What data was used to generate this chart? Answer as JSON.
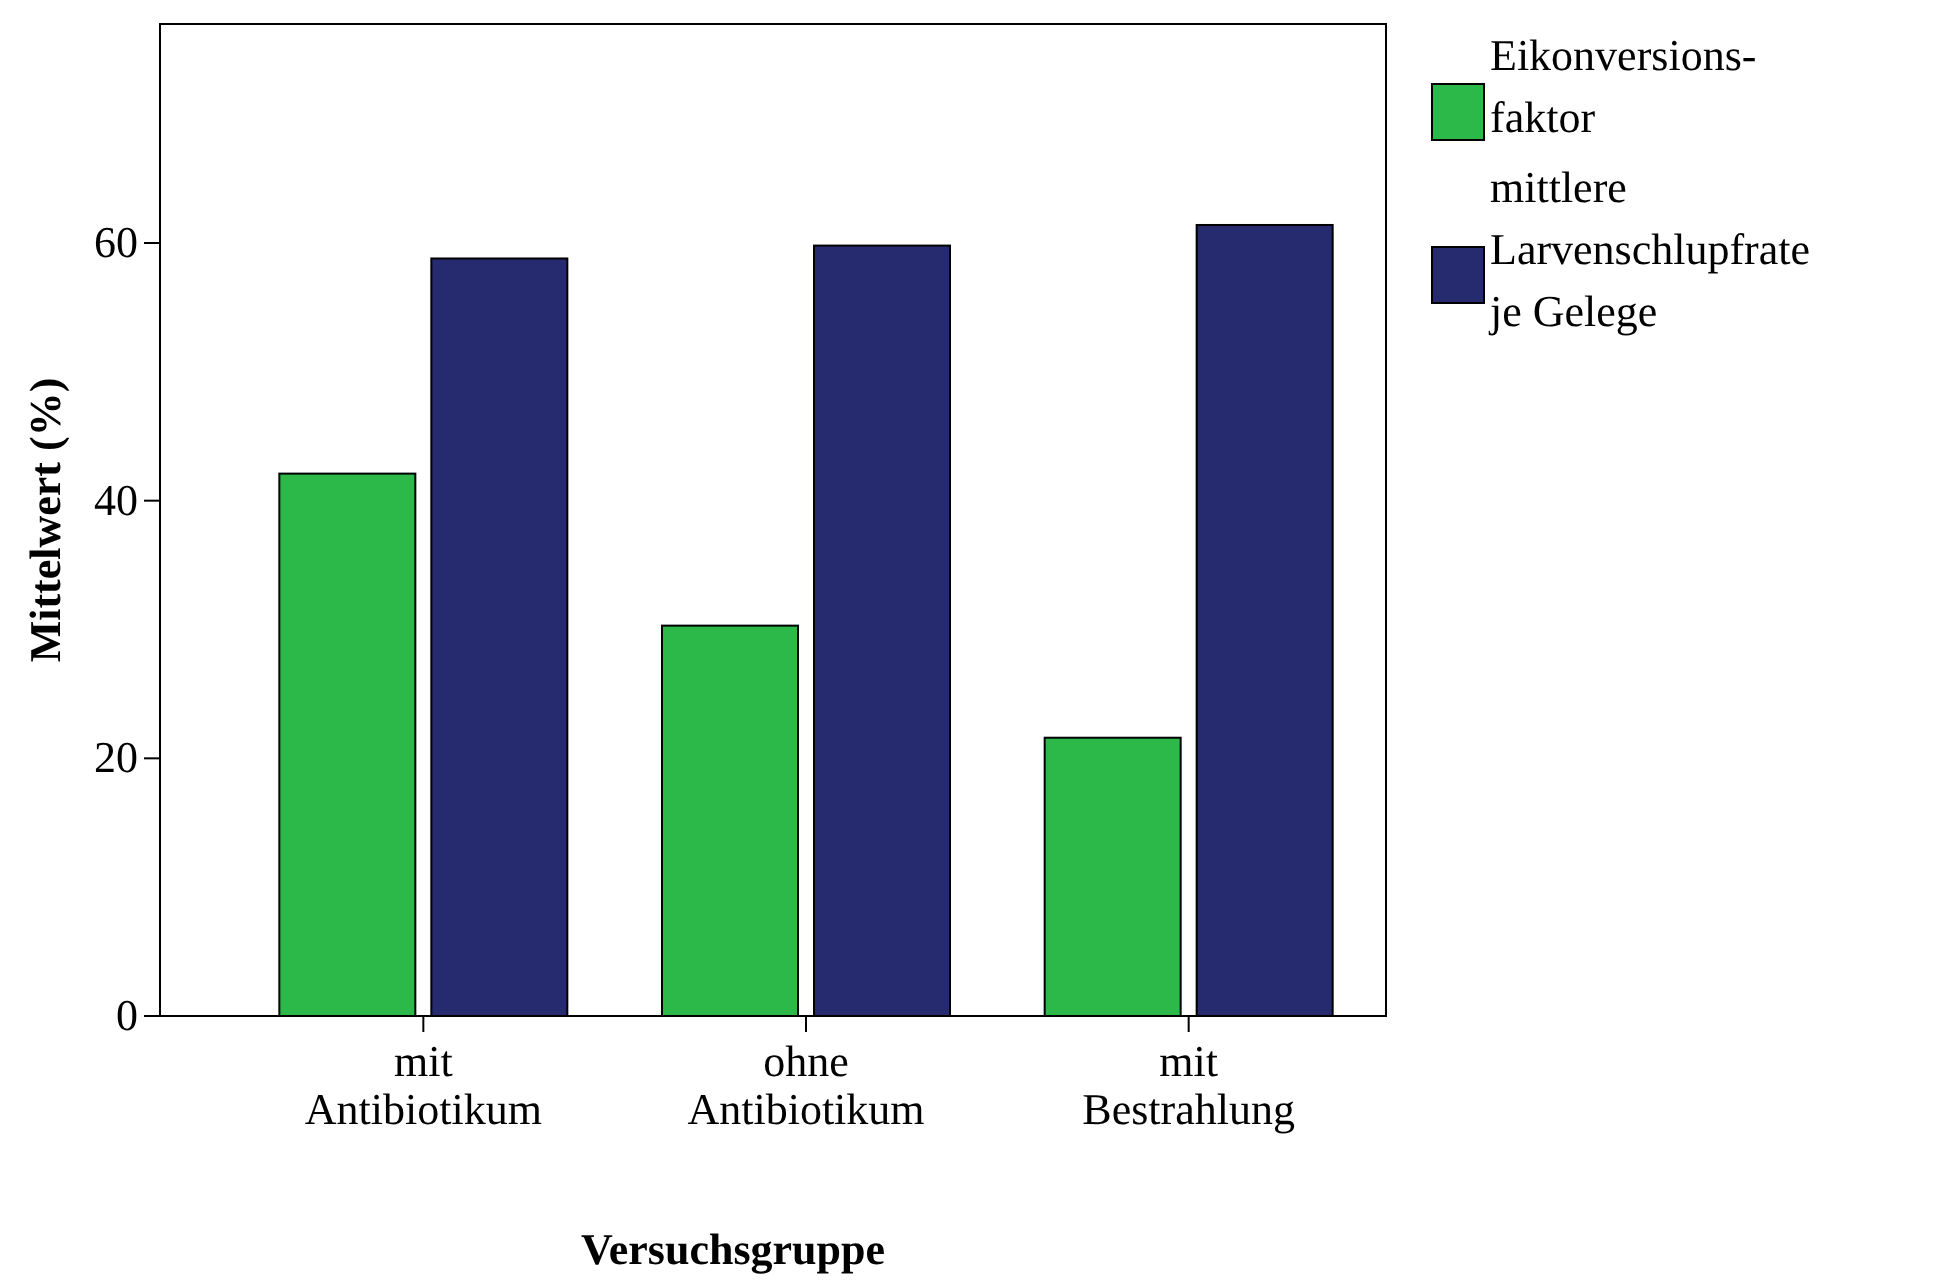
{
  "chart_data": {
    "type": "bar",
    "xlabel": "Versuchsgruppe",
    "ylabel": "Mittelwert (%)",
    "categories": [
      "mit Antibiotikum",
      "ohne Antibiotikum",
      "mit Bestrahlung"
    ],
    "series": [
      {
        "name": "Eikonversions-faktor",
        "color": "#2db84a",
        "values": [
          42.1,
          30.3,
          21.6
        ]
      },
      {
        "name": "mittlere Larvenschlupfrate je Gelege",
        "color": "#262a6e",
        "values": [
          58.8,
          59.8,
          61.4
        ]
      }
    ],
    "ylim": [
      0,
      77
    ],
    "yticks": [
      0,
      20,
      40,
      60
    ],
    "grid": false,
    "legend": "top right"
  }
}
